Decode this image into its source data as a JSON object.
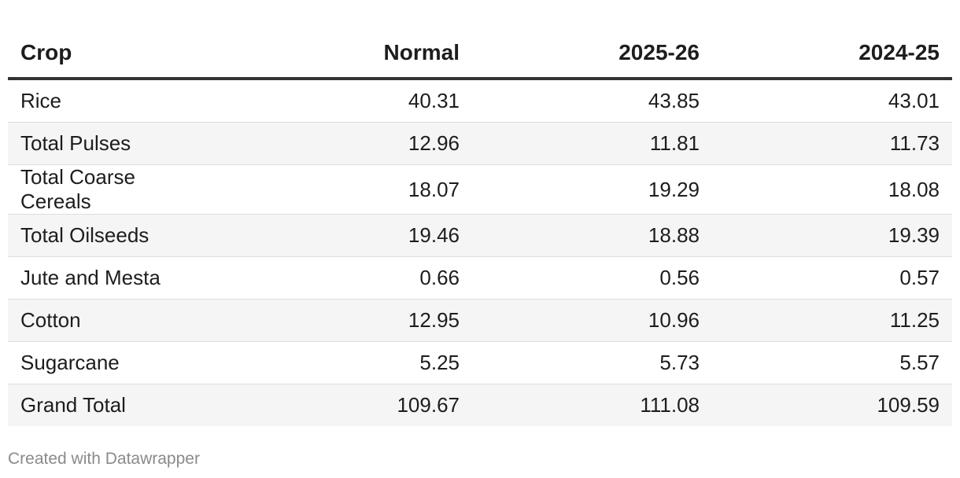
{
  "chart_data": {
    "type": "table",
    "columns": [
      "Crop",
      "Normal",
      "2025-26",
      "2024-25"
    ],
    "rows": [
      {
        "crop": "Rice",
        "normal": "40.31",
        "y2025_26": "43.85",
        "y2024_25": "43.01"
      },
      {
        "crop": "Total Pulses",
        "normal": "12.96",
        "y2025_26": "11.81",
        "y2024_25": "11.73"
      },
      {
        "crop": "Total Coarse Cereals",
        "normal": "18.07",
        "y2025_26": "19.29",
        "y2024_25": "18.08"
      },
      {
        "crop": "Total Oilseeds",
        "normal": "19.46",
        "y2025_26": "18.88",
        "y2024_25": "19.39"
      },
      {
        "crop": "Jute and Mesta",
        "normal": "0.66",
        "y2025_26": "0.56",
        "y2024_25": "0.57"
      },
      {
        "crop": "Cotton",
        "normal": "12.95",
        "y2025_26": "10.96",
        "y2024_25": "11.25"
      },
      {
        "crop": "Sugarcane",
        "normal": "5.25",
        "y2025_26": "5.73",
        "y2024_25": "5.57"
      },
      {
        "crop": "Grand Total",
        "normal": "109.67",
        "y2025_26": "111.08",
        "y2024_25": "109.59"
      }
    ]
  },
  "footer": {
    "credit": "Created with Datawrapper"
  },
  "colors": {
    "header_rule": "#333333",
    "row_stripe": "#f5f5f5",
    "row_divider": "#dddddd",
    "footer_text": "#8a8a8a"
  }
}
